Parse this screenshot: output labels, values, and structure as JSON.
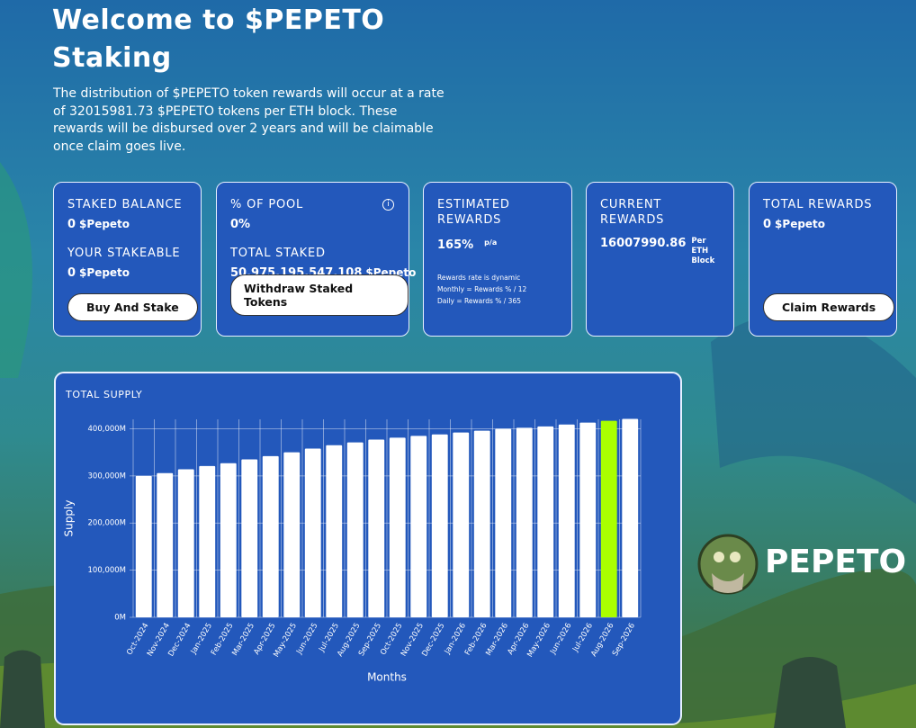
{
  "header": {
    "title": "Welcome to $PEPETO Staking",
    "description": "The distribution of $PEPETO token rewards will occur at a rate of 32015981.73 $PEPETO tokens per ETH block. These rewards will be disbursed over 2 years and will be claimable once claim goes live."
  },
  "cards": [
    {
      "items": [
        {
          "label": "STAKED BALANCE",
          "value": "0",
          "unit": "$Pepeto"
        },
        {
          "label": "YOUR STAKEABLE",
          "value": "0",
          "unit": "$Pepeto"
        }
      ],
      "button": "Buy And Stake"
    },
    {
      "items": [
        {
          "label": "% OF POOL",
          "value": "0%"
        },
        {
          "label": "TOTAL STAKED",
          "value": "50,975,195,547,108",
          "unit": "$Pepeto"
        }
      ],
      "button": "Withdraw Staked Tokens"
    },
    {
      "items": [
        {
          "label": "ESTIMATED REWARDS",
          "value": "165%",
          "unit": "p/a"
        }
      ],
      "notes": [
        "Rewards rate is dynamic",
        "Monthly = Rewards % / 12",
        "Daily = Rewards % / 365"
      ]
    },
    {
      "items": [
        {
          "label": "CURRENT REWARDS",
          "value": "16007990.86",
          "unit": "Per ETH Block"
        }
      ]
    },
    {
      "items": [
        {
          "label": "TOTAL REWARDS",
          "value": "0",
          "unit": "$Pepeto"
        }
      ],
      "button": "Claim Rewards"
    }
  ],
  "logo": "PEPETO",
  "chart_data": {
    "type": "bar",
    "title": "TOTAL SUPPLY",
    "x_label": "Months",
    "y_label": "Supply",
    "categories": [
      "Oct-2024",
      "Nov-2024",
      "Dec-2024",
      "Jan-2025",
      "Feb-2025",
      "Mar-2025",
      "Apr-2025",
      "May-2025",
      "Jun-2025",
      "Jul-2025",
      "Aug-2025",
      "Sep-2025",
      "Oct-2025",
      "Nov-2025",
      "Dec-2025",
      "Jan-2026",
      "Feb-2026",
      "Mar-2026",
      "Apr-2026",
      "May-2026",
      "Jun-2026",
      "Jul-2026",
      "Aug-2026",
      "Sep-2026"
    ],
    "values": [
      300000,
      306000,
      314000,
      321000,
      327000,
      335000,
      342000,
      350000,
      358000,
      365000,
      371000,
      377000,
      381000,
      385000,
      388000,
      392000,
      396000,
      400000,
      402000,
      405000,
      409000,
      413000,
      417000,
      421000
    ],
    "colors": [
      "#ffffff",
      "#ffffff",
      "#ffffff",
      "#ffffff",
      "#ffffff",
      "#ffffff",
      "#ffffff",
      "#ffffff",
      "#ffffff",
      "#ffffff",
      "#ffffff",
      "#ffffff",
      "#ffffff",
      "#ffffff",
      "#ffffff",
      "#ffffff",
      "#ffffff",
      "#ffffff",
      "#ffffff",
      "#ffffff",
      "#ffffff",
      "#ffffff",
      "#aaff00",
      "#ffffff"
    ],
    "ylim": [
      0,
      420000
    ],
    "yticks": [
      {
        "value": 0,
        "label": "0M"
      },
      {
        "value": 100000,
        "label": "100,000M"
      },
      {
        "value": 200000,
        "label": "200,000M"
      },
      {
        "value": 300000,
        "label": "300,000M"
      },
      {
        "value": 400000,
        "label": "400,000M"
      }
    ],
    "grid": true
  }
}
